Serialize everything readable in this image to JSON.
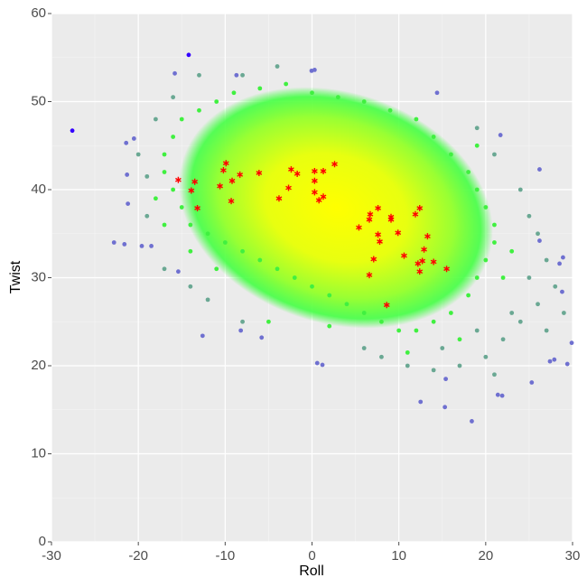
{
  "chart_data": {
    "type": "scatter",
    "x_label": "Roll",
    "y_label": "Twist",
    "xlim": [
      -30,
      30
    ],
    "ylim": [
      0,
      60
    ],
    "xticks": [
      -30,
      -20,
      -10,
      0,
      10,
      20,
      30
    ],
    "yticks": [
      0,
      10,
      20,
      30,
      40,
      50,
      60
    ],
    "xminor": [
      -25,
      -15,
      -5,
      5,
      15,
      25
    ],
    "yminor": [
      5,
      15,
      25,
      35,
      45,
      55
    ],
    "grid": true,
    "series": [
      {
        "color": "#40f040",
        "marker": "circle",
        "x": [
          -17,
          -16,
          -15,
          -13,
          -11,
          -9,
          -6,
          -3,
          0,
          3,
          6,
          9,
          12,
          14,
          16,
          18,
          19,
          20,
          21,
          21,
          20,
          19,
          18,
          16,
          14,
          12,
          10,
          8,
          6,
          4,
          2,
          0,
          -2,
          -4,
          -6,
          -8,
          -10,
          -12,
          -14,
          -15,
          -16,
          -17,
          -18,
          -17,
          -14,
          -11,
          22,
          23,
          19,
          -5,
          2,
          11,
          17
        ],
        "y": [
          44,
          46,
          48,
          49,
          50,
          51,
          51.5,
          52,
          51,
          50.5,
          50,
          49,
          48,
          46,
          44,
          42,
          40,
          38,
          36,
          34,
          32,
          30,
          28,
          26,
          25,
          24,
          24,
          25,
          26,
          27,
          28,
          29,
          30,
          31,
          32,
          33,
          34,
          35,
          36,
          38,
          40,
          42,
          39,
          36,
          33,
          31,
          30,
          33,
          45,
          25,
          24.5,
          21.5,
          23
        ]
      },
      {
        "color": "#6aa893",
        "marker": "circle",
        "x": [
          -18,
          -20,
          -19,
          -17,
          -14,
          -12,
          -8,
          -16,
          -13,
          -8,
          -4,
          19,
          21,
          24,
          25,
          26,
          27,
          28,
          26,
          24,
          22,
          20,
          17,
          14,
          11,
          8,
          6,
          25,
          23,
          19,
          15,
          29,
          27,
          21,
          -19
        ],
        "y": [
          48,
          44,
          37,
          31,
          29,
          27.5,
          25,
          50.5,
          53,
          53,
          54,
          47,
          44,
          40,
          37,
          35,
          32,
          29,
          27,
          25,
          23,
          21,
          20,
          19.5,
          20,
          21,
          22,
          30,
          26,
          24,
          22,
          26,
          24,
          19,
          41.5
        ]
      },
      {
        "color": "#6f70d0",
        "marker": "circle",
        "x": [
          -15.8,
          -22.8,
          -21.6,
          -12.6,
          -8.2,
          -5.8,
          0.6,
          1.2,
          15.4,
          18.4,
          12.5,
          15.3,
          21.4,
          21.9,
          25.3,
          27.4,
          27.9,
          29.4,
          29.9,
          28.8,
          28.5,
          28.9,
          26.2,
          26.2,
          21.7,
          14.4,
          -0.05,
          0.3,
          -8.7,
          -21.4,
          -20.5,
          -21.3,
          -21.2,
          -19.6,
          -18.5,
          -15.4
        ],
        "y": [
          53.2,
          34.0,
          33.8,
          23.4,
          24.0,
          23.2,
          20.3,
          20.1,
          18.5,
          13.7,
          15.9,
          15.3,
          16.7,
          16.6,
          18.1,
          20.5,
          20.7,
          20.2,
          22.6,
          28.4,
          31.6,
          32.3,
          34.2,
          42.3,
          46.2,
          51.0,
          53.5,
          53.6,
          53.0,
          45.3,
          45.8,
          41.7,
          38.4,
          33.6,
          33.6,
          30.7
        ]
      },
      {
        "color": "#3300ff",
        "marker": "circle",
        "x": [
          -27.6,
          -14.2
        ],
        "y": [
          46.7,
          55.3
        ]
      },
      {
        "color": "#ff0000",
        "marker": "asterisk",
        "x": [
          -15.4,
          -13.5,
          -13.9,
          -13.2,
          -9.9,
          -10.2,
          -10.6,
          -9.2,
          -9.3,
          -8.3,
          -6.1,
          -3.8,
          -2.7,
          -2.4,
          -1.7,
          0.3,
          0.3,
          0.3,
          0.8,
          1.3,
          1.3,
          2.6,
          5.4,
          6.6,
          6.7,
          7.6,
          7.6,
          7.8,
          7.1,
          6.6,
          8.6,
          9.1,
          9.1,
          9.9,
          10.6,
          11.9,
          12.4,
          12.2,
          12.4,
          12.9,
          12.7,
          13.3,
          14.0,
          15.5
        ],
        "y": [
          41.1,
          40.9,
          39.9,
          37.9,
          43.0,
          42.2,
          40.4,
          41.0,
          38.7,
          41.7,
          41.9,
          39.0,
          40.2,
          42.3,
          41.8,
          42.1,
          41.0,
          39.7,
          38.8,
          39.2,
          42.1,
          42.9,
          35.7,
          36.6,
          37.2,
          37.9,
          34.9,
          34.1,
          32.1,
          30.3,
          26.9,
          36.9,
          36.6,
          35.1,
          32.5,
          37.2,
          37.9,
          31.6,
          30.7,
          33.2,
          31.9,
          34.7,
          31.8,
          31.0
        ]
      }
    ]
  }
}
